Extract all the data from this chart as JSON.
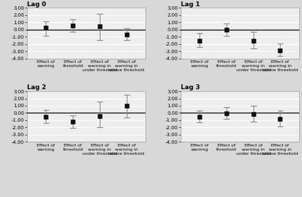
{
  "panels": [
    {
      "title": "Lag 0",
      "categories": [
        "Effect of\nwarning",
        "Effect of\nthreshold",
        "Effect of\nwarning in\nunder threshold",
        "Effect of\nwarning in\nabove threshold"
      ],
      "means": [
        0.25,
        0.55,
        0.45,
        -0.65
      ],
      "ci_low": [
        -0.85,
        -0.3,
        -1.5,
        -1.5
      ],
      "ci_high": [
        1.1,
        1.45,
        2.2,
        0.2
      ]
    },
    {
      "title": "Lag 1",
      "categories": [
        "Effect of\nwarning",
        "Effect of\nthreshold",
        "Effect of\nwarning in\nunder threshold",
        "Effect of\nwarning in\nabove threshold"
      ],
      "means": [
        -1.55,
        -0.05,
        -1.55,
        -2.85
      ],
      "ci_low": [
        -2.45,
        -0.85,
        -2.65,
        -3.7
      ],
      "ci_high": [
        -0.55,
        0.8,
        -0.3,
        -1.9
      ]
    },
    {
      "title": "Lag 2",
      "categories": [
        "Effect of\nwarning",
        "Effect of\nthreshold",
        "Effect of\nwarning in\nunder threshold",
        "Effect of\nwarning in\nabove threshold"
      ],
      "means": [
        -0.55,
        -1.2,
        -0.4,
        0.95
      ],
      "ci_low": [
        -1.4,
        -2.1,
        -2.0,
        -0.65
      ],
      "ci_high": [
        0.45,
        -0.3,
        1.55,
        2.55
      ]
    },
    {
      "title": "Lag 3",
      "categories": [
        "Effect of\nwarning",
        "Effect of\nthreshold",
        "Effect of\nwarning in\nunder threshold",
        "Effect of\nwarning in\nabove threshold"
      ],
      "means": [
        -0.5,
        -0.05,
        -0.15,
        -0.85
      ],
      "ci_low": [
        -1.3,
        -0.8,
        -1.2,
        -1.9
      ],
      "ci_high": [
        0.35,
        0.8,
        1.0,
        0.3
      ]
    }
  ],
  "ylim": [
    -4.0,
    3.0
  ],
  "yticks": [
    -4.0,
    -3.0,
    -2.0,
    -1.0,
    0.0,
    1.0,
    2.0,
    3.0
  ],
  "ytick_labels": [
    "-4.00",
    "-3.00",
    "-2.00",
    "-1.00",
    "0.00",
    "1.00",
    "2.00",
    "3.00"
  ],
  "marker_color": "#111111",
  "marker_size": 4.5,
  "line_color": "#888888",
  "zero_line_color": "#000000",
  "bg_color": "#eeeeee",
  "grid_color": "#ffffff",
  "title_fontsize": 6.5,
  "tick_fontsize": 5.0,
  "label_fontsize": 4.5
}
